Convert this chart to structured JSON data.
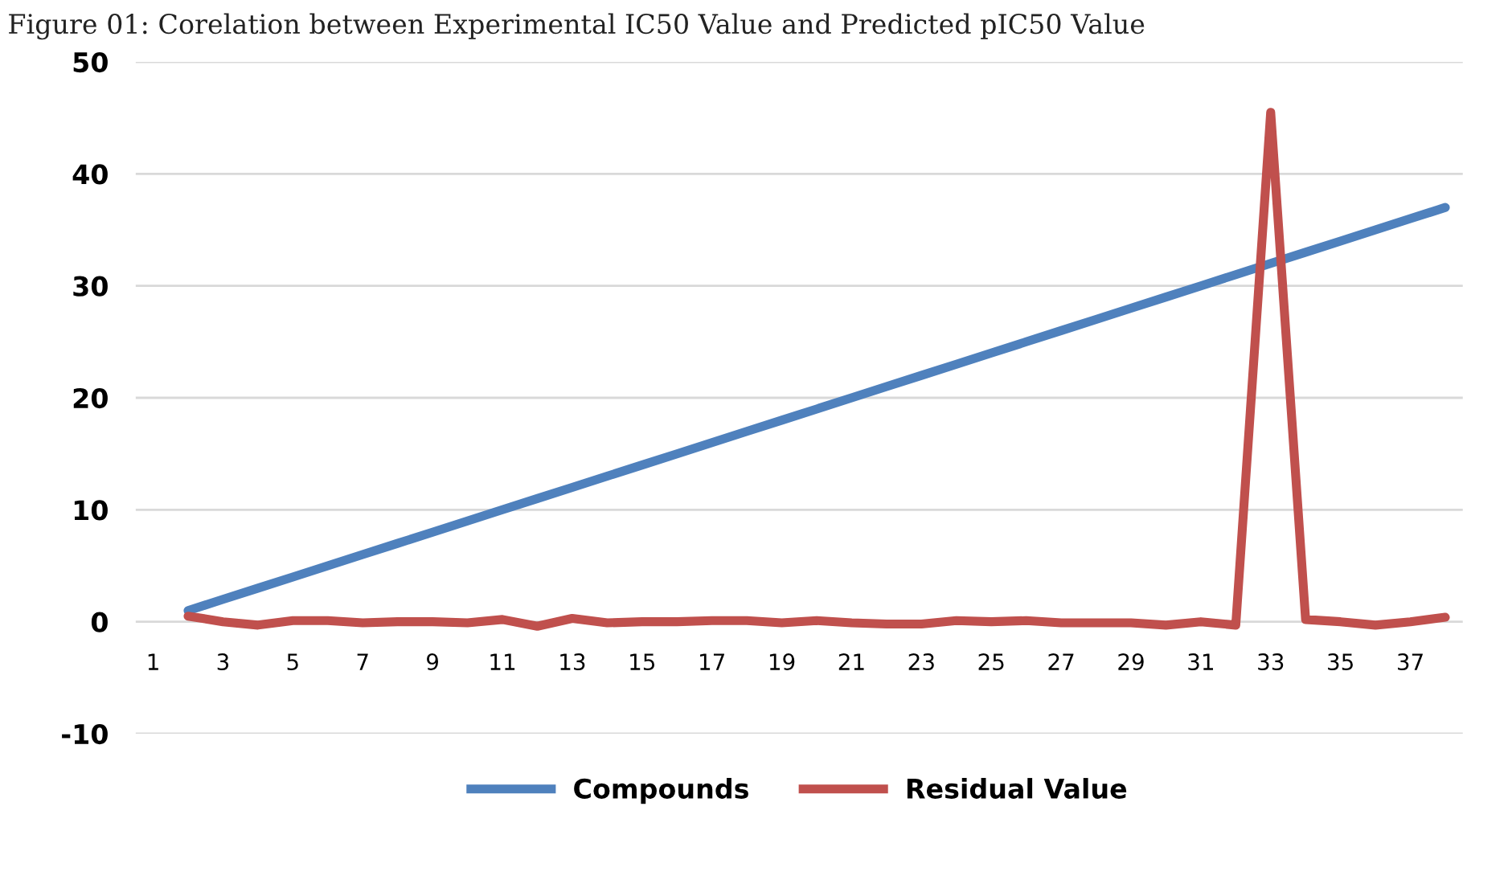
{
  "chart_data": {
    "type": "line",
    "title": "Figure 01: Corelation between Experimental IC50 Value and Predicted pIC50 Value",
    "categories": [
      "1",
      null,
      "3",
      null,
      "5",
      null,
      "7",
      null,
      "9",
      null,
      "11",
      null,
      "13",
      null,
      "15",
      null,
      "17",
      null,
      "19",
      null,
      "21",
      null,
      "23",
      null,
      "25",
      null,
      "27",
      null,
      "29",
      null,
      "31",
      null,
      "33",
      null,
      "35",
      null,
      "37",
      null
    ],
    "series": [
      {
        "name": "Compounds",
        "color": "#4f81bd",
        "values": [
          null,
          1,
          2,
          3,
          4,
          5,
          6,
          7,
          8,
          9,
          10,
          11,
          12,
          13,
          14,
          15,
          16,
          17,
          18,
          19,
          20,
          21,
          22,
          23,
          24,
          25,
          26,
          27,
          28,
          29,
          30,
          31,
          32,
          33,
          34,
          35,
          36,
          37
        ]
      },
      {
        "name": "Residual Value",
        "color": "#c0504d",
        "values": [
          null,
          0.5,
          0,
          -0.3,
          0.1,
          0.1,
          -0.1,
          0,
          0,
          -0.1,
          0.2,
          -0.4,
          0.3,
          -0.1,
          0,
          0,
          0.1,
          0.1,
          -0.1,
          0.1,
          -0.1,
          -0.2,
          -0.2,
          0.1,
          0,
          0.1,
          -0.1,
          -0.1,
          -0.1,
          -0.3,
          0,
          -0.3,
          45.5,
          0.2,
          0,
          -0.3,
          0,
          0.4
        ]
      }
    ],
    "ylim": [
      -10,
      50
    ],
    "yticks": [
      -10,
      0,
      10,
      20,
      30,
      40,
      50
    ],
    "grid": "y",
    "legend": "bottom",
    "marker": "none",
    "line_style": "solid"
  }
}
